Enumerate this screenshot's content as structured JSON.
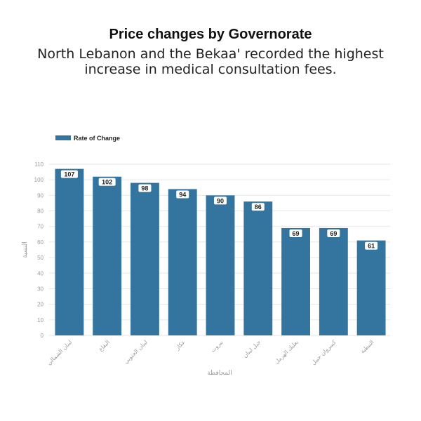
{
  "title": "Price changes by Governorate",
  "subtitle": "North Lebanon and the Bekaa' recorded the highest increase in medical consultation fees.",
  "chart_data": {
    "type": "bar",
    "categories": [
      "لبنان الشمالي",
      "البقاع",
      "لبنان الجنوبي",
      "عكار",
      "بيروت",
      "جبل لبنان",
      "بعلبك الهرمل",
      "كسروان جبيل",
      "النبطية"
    ],
    "series": [
      {
        "name": "Rate of Change",
        "values": [
          107,
          102,
          98,
          94,
          90,
          86,
          69,
          69,
          61
        ]
      }
    ],
    "xlabel": "المحافظة",
    "ylabel": "النسبة",
    "ylim": [
      0,
      110
    ],
    "yticks": [
      0,
      10,
      20,
      30,
      40,
      50,
      60,
      70,
      80,
      90,
      100,
      110
    ],
    "grid": true,
    "legend": "top-left",
    "bar_color": "#34759f"
  }
}
